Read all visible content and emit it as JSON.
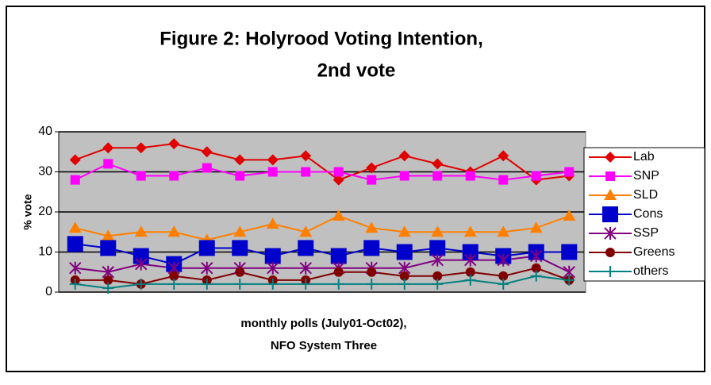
{
  "chart_data": {
    "type": "line",
    "title": [
      "Figure 2: Holyrood Voting Intention,",
      "2nd vote"
    ],
    "y_label": "% vote",
    "x_label": [
      "monthly polls (July01-Oct02),",
      "NFO System Three"
    ],
    "categories": [
      null,
      null,
      null,
      null,
      null,
      null,
      null,
      null,
      null,
      null,
      null,
      null,
      null,
      null,
      null,
      null
    ],
    "ylim": [
      0,
      40
    ],
    "yticks": [
      0,
      10,
      20,
      30,
      40
    ],
    "grid": true,
    "legend": "right",
    "series": [
      {
        "name": "Lab",
        "color": "#e00000",
        "marker": "diamond",
        "values": [
          33,
          36,
          36,
          37,
          35,
          33,
          33,
          34,
          28,
          31,
          34,
          32,
          30,
          34,
          28,
          29
        ]
      },
      {
        "name": "SNP",
        "color": "#ff00ff",
        "marker": "square",
        "values": [
          28,
          32,
          29,
          29,
          31,
          29,
          30,
          30,
          30,
          28,
          29,
          29,
          29,
          28,
          29,
          30
        ]
      },
      {
        "name": "SLD",
        "color": "#ff8000",
        "marker": "triangle",
        "values": [
          16,
          14,
          15,
          15,
          13,
          15,
          17,
          15,
          19,
          16,
          15,
          15,
          15,
          15,
          16,
          19
        ]
      },
      {
        "name": "Cons",
        "color": "#0000cc",
        "marker": "bigsquare",
        "values": [
          12,
          11,
          9,
          7,
          11,
          11,
          9,
          11,
          9,
          11,
          10,
          11,
          10,
          9,
          10,
          10
        ]
      },
      {
        "name": "SSP",
        "color": "#800080",
        "marker": "asterisk",
        "values": [
          6,
          5,
          7,
          6,
          6,
          6,
          6,
          6,
          6,
          6,
          6,
          8,
          8,
          8,
          9,
          5
        ]
      },
      {
        "name": "Greens",
        "color": "#800000",
        "marker": "circle",
        "values": [
          3,
          3,
          2,
          4,
          3,
          5,
          3,
          3,
          5,
          5,
          4,
          4,
          5,
          4,
          6,
          3
        ]
      },
      {
        "name": "others",
        "color": "#008080",
        "marker": "plus",
        "values": [
          2,
          1,
          2,
          2,
          2,
          2,
          2,
          2,
          2,
          2,
          2,
          2,
          3,
          2,
          4,
          3
        ]
      }
    ]
  }
}
